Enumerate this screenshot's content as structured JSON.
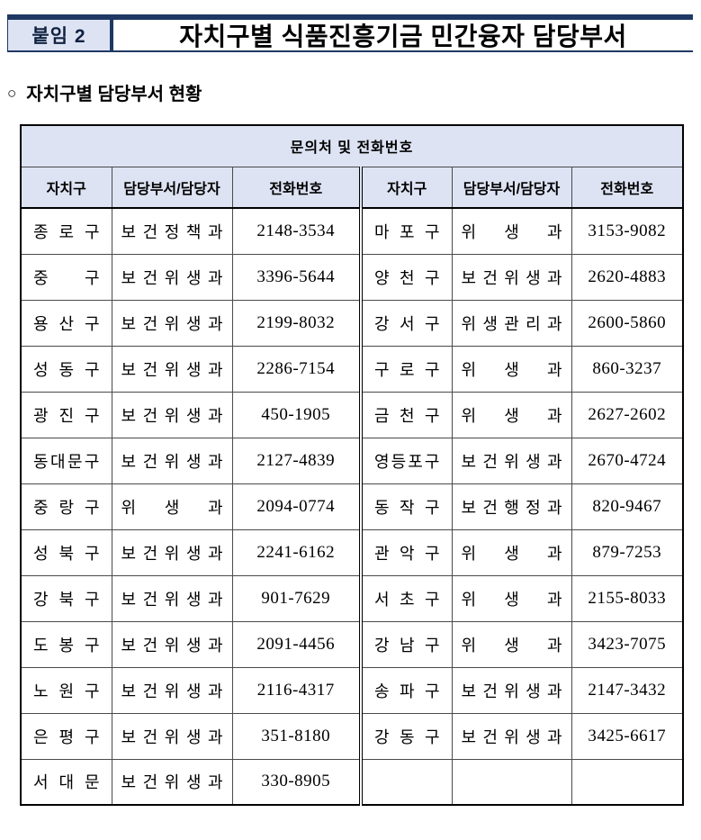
{
  "page": {
    "badge": "붙임 2",
    "title": "자치구별 식품진흥기금 민간융자 담당부서",
    "section_marker": "○",
    "section_title": "자치구별 담당부서 현황"
  },
  "table": {
    "caption": "문의처 및 전화번호",
    "columns": [
      "자치구",
      "담당부서/담당자",
      "전화번호",
      "자치구",
      "담당부서/담당자",
      "전화번호"
    ],
    "rows": [
      {
        "left": {
          "district": "종로구",
          "dept": "보건정책과",
          "phone": "2148-3534"
        },
        "right": {
          "district": "마포구",
          "dept": "위생과",
          "phone": "3153-9082"
        }
      },
      {
        "left": {
          "district": "중구",
          "dept": "보건위생과",
          "phone": "3396-5644"
        },
        "right": {
          "district": "양천구",
          "dept": "보건위생과",
          "phone": "2620-4883"
        }
      },
      {
        "left": {
          "district": "용산구",
          "dept": "보건위생과",
          "phone": "2199-8032"
        },
        "right": {
          "district": "강서구",
          "dept": "위생관리과",
          "phone": "2600-5860"
        }
      },
      {
        "left": {
          "district": "성동구",
          "dept": "보건위생과",
          "phone": "2286-7154"
        },
        "right": {
          "district": "구로구",
          "dept": "위생과",
          "phone": "860-3237"
        }
      },
      {
        "left": {
          "district": "광진구",
          "dept": "보건위생과",
          "phone": "450-1905"
        },
        "right": {
          "district": "금천구",
          "dept": "위생과",
          "phone": "2627-2602"
        }
      },
      {
        "left": {
          "district": "동대문구",
          "dept": "보건위생과",
          "phone": "2127-4839"
        },
        "right": {
          "district": "영등포구",
          "dept": "보건위생과",
          "phone": "2670-4724"
        }
      },
      {
        "left": {
          "district": "중랑구",
          "dept": "위생과",
          "phone": "2094-0774"
        },
        "right": {
          "district": "동작구",
          "dept": "보건행정과",
          "phone": "820-9467"
        }
      },
      {
        "left": {
          "district": "성북구",
          "dept": "보건위생과",
          "phone": "2241-6162"
        },
        "right": {
          "district": "관악구",
          "dept": "위생과",
          "phone": "879-7253"
        }
      },
      {
        "left": {
          "district": "강북구",
          "dept": "보건위생과",
          "phone": "901-7629"
        },
        "right": {
          "district": "서초구",
          "dept": "위생과",
          "phone": "2155-8033"
        }
      },
      {
        "left": {
          "district": "도봉구",
          "dept": "보건위생과",
          "phone": "2091-4456"
        },
        "right": {
          "district": "강남구",
          "dept": "위생과",
          "phone": "3423-7075"
        }
      },
      {
        "left": {
          "district": "노원구",
          "dept": "보건위생과",
          "phone": "2116-4317"
        },
        "right": {
          "district": "송파구",
          "dept": "보건위생과",
          "phone": "2147-3432"
        }
      },
      {
        "left": {
          "district": "은평구",
          "dept": "보건위생과",
          "phone": "351-8180"
        },
        "right": {
          "district": "강동구",
          "dept": "보건위생과",
          "phone": "3425-6617"
        }
      },
      {
        "left": {
          "district": "서대문",
          "dept": "보건위생과",
          "phone": "330-8905"
        },
        "right": {
          "district": "",
          "dept": "",
          "phone": ""
        }
      }
    ]
  },
  "colors": {
    "navy": "#1F3864",
    "header_bg": "#dde3f3"
  }
}
